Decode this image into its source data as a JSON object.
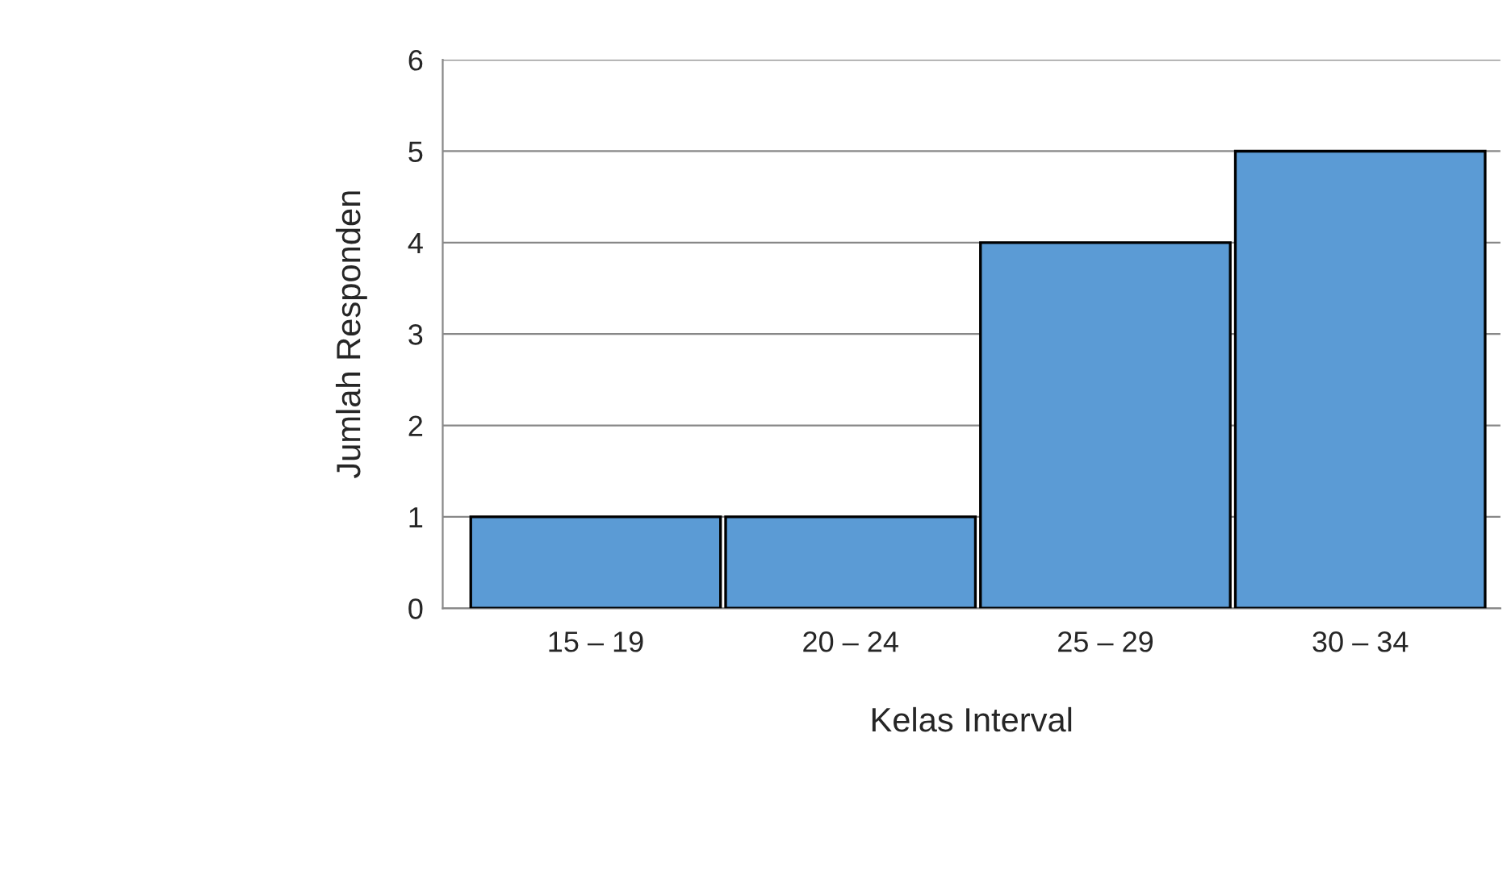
{
  "chart_data": {
    "type": "bar",
    "xlabel": "Kelas Interval",
    "ylabel": "Jumlah Responden",
    "categories": [
      "15 – 19",
      "20 – 24",
      "25 – 29",
      "30 – 34"
    ],
    "values": [
      1,
      1,
      4,
      5
    ],
    "color": "#5b9bd5",
    "ylim": [
      0,
      6
    ],
    "yticks": [
      0,
      1,
      2,
      3,
      4,
      5,
      6
    ],
    "grid": "y"
  }
}
